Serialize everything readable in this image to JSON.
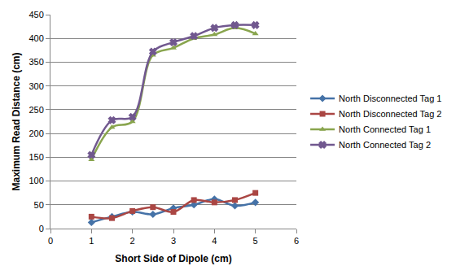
{
  "chart_data": {
    "type": "line",
    "x_label": "Short Side of Dipole (cm)",
    "y_label": "Maximum Read Distance (cm)",
    "x": [
      1,
      1.5,
      2,
      2.5,
      3,
      3.5,
      4,
      4.5,
      5
    ],
    "series": [
      {
        "name": "North Disconnected Tag 1",
        "color": "#4572A7",
        "marker": "diamond",
        "line_style": "smooth",
        "values": [
          13,
          25,
          35,
          30,
          43,
          50,
          62,
          48,
          55
        ]
      },
      {
        "name": "North Disconnected Tag 2",
        "color": "#AA4643",
        "marker": "square",
        "line_style": "smooth",
        "values": [
          25,
          22,
          37,
          45,
          35,
          60,
          55,
          60,
          75
        ]
      },
      {
        "name": "North Connected Tag 1",
        "color": "#89A54E",
        "marker": "triangle-up",
        "line_style": "smooth",
        "values": [
          145,
          213,
          225,
          365,
          380,
          400,
          408,
          422,
          410
        ]
      },
      {
        "name": "North Connected Tag 2",
        "color": "#71588F",
        "marker": "x",
        "line_style": "smooth",
        "values": [
          155,
          228,
          235,
          372,
          392,
          405,
          422,
          428,
          428
        ]
      }
    ],
    "xlim": [
      0,
      6
    ],
    "xticks": [
      0,
      1,
      2,
      3,
      4,
      5,
      6
    ],
    "ylim": [
      0,
      450
    ],
    "yticks": [
      0,
      50,
      100,
      150,
      200,
      250,
      300,
      350,
      400,
      450
    ],
    "grid": true,
    "legend": "right"
  }
}
